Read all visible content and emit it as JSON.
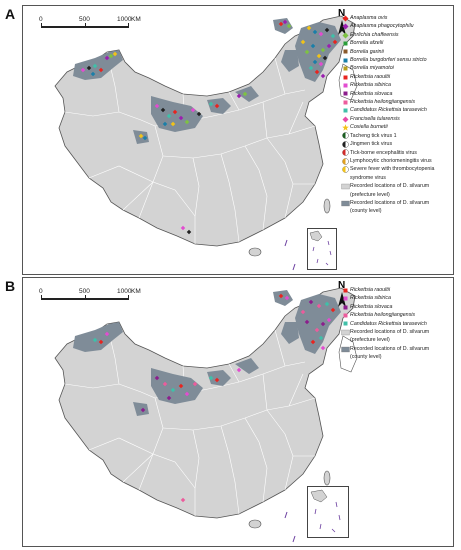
{
  "panels": [
    {
      "letter": "A",
      "scale": {
        "labels": [
          "0",
          "500",
          "1000"
        ],
        "unit": "KM"
      },
      "north": "N",
      "legend": [
        {
          "kind": "diamond",
          "color": "#e8241f",
          "text": "Anaplasma ovis",
          "italic": true
        },
        {
          "kind": "diamond",
          "color": "#9b1fb0",
          "text": "Anaplasma phagocytophilu",
          "italic": true
        },
        {
          "kind": "diamond",
          "color": "#7ec242",
          "text": "Ehrlichia chaffeensis",
          "italic": true
        },
        {
          "kind": "square",
          "color": "#2c9e3a",
          "text": "Borrelia afzelii",
          "italic": true
        },
        {
          "kind": "square",
          "color": "#8a5a2b",
          "text": "Borrelia garinii",
          "italic": true
        },
        {
          "kind": "square",
          "color": "#1a7fa8",
          "text": "Borrelia burgdorferi sensu stricto",
          "italic": true
        },
        {
          "kind": "square",
          "color": "#b8a01c",
          "text": "Borrelia miyamotoi",
          "italic": true
        },
        {
          "kind": "square",
          "color": "#e8241f",
          "text": "Rickettsia raoultii",
          "italic": true
        },
        {
          "kind": "square",
          "color": "#e24dd0",
          "text": "Rickettsia sibirica",
          "italic": true
        },
        {
          "kind": "square",
          "color": "#8c1e8c",
          "text": "Rickettsia slovaca",
          "italic": true
        },
        {
          "kind": "square",
          "color": "#ec5c9c",
          "text": "Rickettsia heilongjiangensis",
          "italic": true
        },
        {
          "kind": "square",
          "color": "#40c0a8",
          "text": "Candidatus Rickettsia tarasevich",
          "italic": true
        },
        {
          "kind": "diamond",
          "color": "#e84aa8",
          "text": "Francisella tularensis",
          "italic": true
        },
        {
          "kind": "star",
          "color": "#f2c318",
          "text": "Coxiella burnetii",
          "italic": true
        },
        {
          "kind": "halfcircle",
          "color": "#1b5e20",
          "text": "Tacheng tick virus 1",
          "italic": false
        },
        {
          "kind": "halfcircle",
          "color": "#222222",
          "text": "Jingmen tick virus",
          "italic": false
        },
        {
          "kind": "halfcircle",
          "color": "#d12b2b",
          "text": "Tick-borne encephalitis virus",
          "italic": false
        },
        {
          "kind": "halfcircle",
          "color": "#e0a020",
          "text": "Lymphocytic choriomeningitis virus",
          "italic": false
        },
        {
          "kind": "halfcircle",
          "color": "#f2c318",
          "text": "Severe fever with thrombocytopenia",
          "italic": false
        },
        {
          "kind": "none",
          "color": "",
          "text": "syndrome virus",
          "italic": false
        },
        {
          "kind": "box",
          "color": "#d3d3d3",
          "text": "Recorded locations of D. silvarum",
          "italic": false
        },
        {
          "kind": "none",
          "color": "",
          "text": "(prefecture level)",
          "italic": false
        },
        {
          "kind": "box",
          "color": "#7f8c98",
          "text": "Recorded locations of D. silvarum",
          "italic": false
        },
        {
          "kind": "none",
          "color": "",
          "text": "(county level)",
          "italic": false
        }
      ]
    },
    {
      "letter": "B",
      "scale": {
        "labels": [
          "0",
          "500",
          "1000"
        ],
        "unit": "KM"
      },
      "north": "N",
      "legend": [
        {
          "kind": "square",
          "color": "#e8241f",
          "text": "Rickettsia raoultii",
          "italic": true
        },
        {
          "kind": "square",
          "color": "#e24dd0",
          "text": "Rickettsia sibirica",
          "italic": true
        },
        {
          "kind": "square",
          "color": "#8c1e8c",
          "text": "Rickettsia slovaca",
          "italic": true
        },
        {
          "kind": "square",
          "color": "#ec5c9c",
          "text": "Rickettsia heilongjiangensis",
          "italic": true
        },
        {
          "kind": "square",
          "color": "#40c0a8",
          "text": "Candidatus Rickettsia tarasevich",
          "italic": true
        },
        {
          "kind": "box",
          "color": "#d3d3d3",
          "text": "Recorded locations of D. silvarum",
          "italic": false
        },
        {
          "kind": "none",
          "color": "",
          "text": "(prefecture level)",
          "italic": false
        },
        {
          "kind": "box",
          "color": "#7f8c98",
          "text": "Recorded locations of D. silvarum",
          "italic": false
        },
        {
          "kind": "none",
          "color": "",
          "text": "(county level)",
          "italic": false
        }
      ]
    }
  ],
  "colors": {
    "land": "#d3d3d3",
    "county": "#7f8c98",
    "border": "#ffffff",
    "outline": "#555555"
  }
}
